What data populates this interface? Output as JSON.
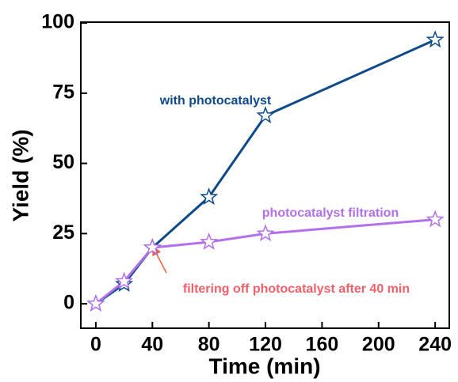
{
  "chart_data": {
    "type": "line",
    "xlabel": "Time (min)",
    "ylabel": "Yield (%)",
    "series": [
      {
        "name": "with photocatalyst",
        "color": "#0e4a8a",
        "x": [
          0,
          20,
          40,
          80,
          120,
          240
        ],
        "values": [
          0,
          7,
          20,
          38,
          67,
          94
        ]
      },
      {
        "name": "photocatalyst filtration",
        "color": "#b271ea",
        "x": [
          0,
          20,
          40,
          80,
          120,
          240
        ],
        "values": [
          0,
          8,
          20,
          22,
          25,
          30
        ]
      }
    ],
    "annotations": [
      "filtering off photocatalyst after 40 min"
    ],
    "annotation_color": "#f0606a",
    "xlim": [
      -10.6,
      250
    ],
    "xticks": [
      0,
      40,
      80,
      120,
      160,
      200,
      240
    ],
    "ylim": [
      -8.7,
      100.3
    ],
    "yticks": [
      0,
      25,
      50,
      75,
      100
    ],
    "grid": false
  }
}
